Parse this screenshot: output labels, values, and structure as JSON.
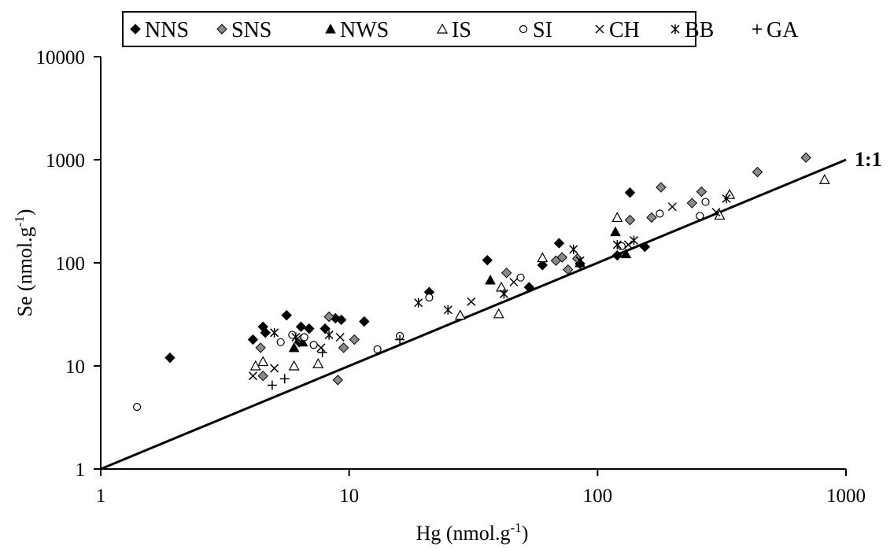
{
  "chart_data": {
    "type": "scatter",
    "xlabel": "Hg (nmol.g",
    "xlabel_sup": "-1",
    "xlabel_end": ")",
    "ylabel": "Se (nmol.g",
    "ylabel_sup": "-1",
    "ylabel_end": ")",
    "x_scale": "log",
    "y_scale": "log",
    "xlim": [
      1,
      1000
    ],
    "ylim": [
      1,
      10000
    ],
    "x_ticks": [
      "1",
      "10",
      "100",
      "1000"
    ],
    "y_ticks": [
      "1",
      "10",
      "100",
      "1000",
      "10000"
    ],
    "x_tick_values": [
      1,
      10,
      100,
      1000
    ],
    "y_tick_values": [
      1,
      10,
      100,
      1000,
      10000
    ],
    "grid": false,
    "legend_position": "top",
    "reference_line": {
      "label": "1:1",
      "from": [
        1,
        1
      ],
      "to": [
        1000,
        1000
      ]
    },
    "series": [
      {
        "name": "NNS",
        "symbol": "diamond-filled",
        "color": "#000000",
        "points": [
          [
            1.9,
            12
          ],
          [
            4.1,
            18
          ],
          [
            4.5,
            24
          ],
          [
            4.6,
            21
          ],
          [
            5.6,
            31
          ],
          [
            6.3,
            17
          ],
          [
            6.4,
            24
          ],
          [
            6.9,
            23
          ],
          [
            8,
            23
          ],
          [
            8.8,
            29
          ],
          [
            9.3,
            28
          ],
          [
            11.5,
            27
          ],
          [
            21,
            52
          ],
          [
            36,
            106
          ],
          [
            53,
            58
          ],
          [
            60,
            95
          ],
          [
            70,
            155
          ],
          [
            85,
            98
          ],
          [
            120,
            118
          ],
          [
            135,
            480
          ],
          [
            155,
            143
          ]
        ]
      },
      {
        "name": "SNS",
        "symbol": "diamond-filled",
        "color": "#8a8a8a",
        "points": [
          [
            4.4,
            15
          ],
          [
            4.5,
            8
          ],
          [
            6.4,
            18
          ],
          [
            8.3,
            30
          ],
          [
            9,
            7.3
          ],
          [
            9.5,
            15
          ],
          [
            10.5,
            18
          ],
          [
            43,
            80
          ],
          [
            68,
            105
          ],
          [
            72,
            113
          ],
          [
            76,
            86
          ],
          [
            83,
            110
          ],
          [
            135,
            260
          ],
          [
            165,
            275
          ],
          [
            180,
            540
          ],
          [
            240,
            380
          ],
          [
            262,
            490
          ],
          [
            440,
            760
          ],
          [
            690,
            1050
          ]
        ]
      },
      {
        "name": "NWS",
        "symbol": "triangle-filled",
        "color": "#000000",
        "points": [
          [
            6,
            15
          ],
          [
            6.5,
            17
          ],
          [
            37,
            68
          ],
          [
            85,
            100
          ],
          [
            118,
            200
          ],
          [
            130,
            122
          ]
        ]
      },
      {
        "name": "IS",
        "symbol": "triangle-open",
        "color": "#000000",
        "points": [
          [
            4.2,
            10
          ],
          [
            4.5,
            11
          ],
          [
            6,
            10
          ],
          [
            7.5,
            10.5
          ],
          [
            28,
            31
          ],
          [
            40,
            32
          ],
          [
            41,
            58
          ],
          [
            60,
            112
          ],
          [
            120,
            275
          ],
          [
            310,
            290
          ],
          [
            340,
            460
          ],
          [
            820,
            640
          ]
        ]
      },
      {
        "name": "SI",
        "symbol": "circle-open",
        "color": "#000000",
        "points": [
          [
            1.4,
            4
          ],
          [
            5.3,
            17
          ],
          [
            5.9,
            20
          ],
          [
            6.6,
            19
          ],
          [
            7.2,
            16
          ],
          [
            13,
            14.5
          ],
          [
            16,
            19.5
          ],
          [
            21,
            46
          ],
          [
            49,
            72
          ],
          [
            125,
            145
          ],
          [
            178,
            300
          ],
          [
            258,
            285
          ],
          [
            272,
            390
          ]
        ]
      },
      {
        "name": "CH",
        "symbol": "cross-x",
        "color": "#000000",
        "points": [
          [
            4.1,
            8
          ],
          [
            5,
            9.5
          ],
          [
            7.7,
            15
          ],
          [
            9.2,
            19
          ],
          [
            31,
            42
          ],
          [
            46,
            65
          ],
          [
            85,
            105
          ],
          [
            133,
            150
          ],
          [
            200,
            350
          ],
          [
            300,
            310
          ]
        ]
      },
      {
        "name": "BB",
        "symbol": "asterisk",
        "color": "#000000",
        "points": [
          [
            5,
            21
          ],
          [
            6.1,
            19
          ],
          [
            8.3,
            20
          ],
          [
            19,
            41
          ],
          [
            25,
            35
          ],
          [
            42,
            50
          ],
          [
            80,
            135
          ],
          [
            120,
            150
          ],
          [
            140,
            165
          ],
          [
            330,
            420
          ]
        ]
      },
      {
        "name": "GA",
        "symbol": "plus",
        "color": "#000000",
        "points": [
          [
            4.9,
            6.5
          ],
          [
            5.5,
            7.5
          ],
          [
            7.8,
            13.5
          ],
          [
            16,
            18
          ]
        ]
      }
    ]
  }
}
